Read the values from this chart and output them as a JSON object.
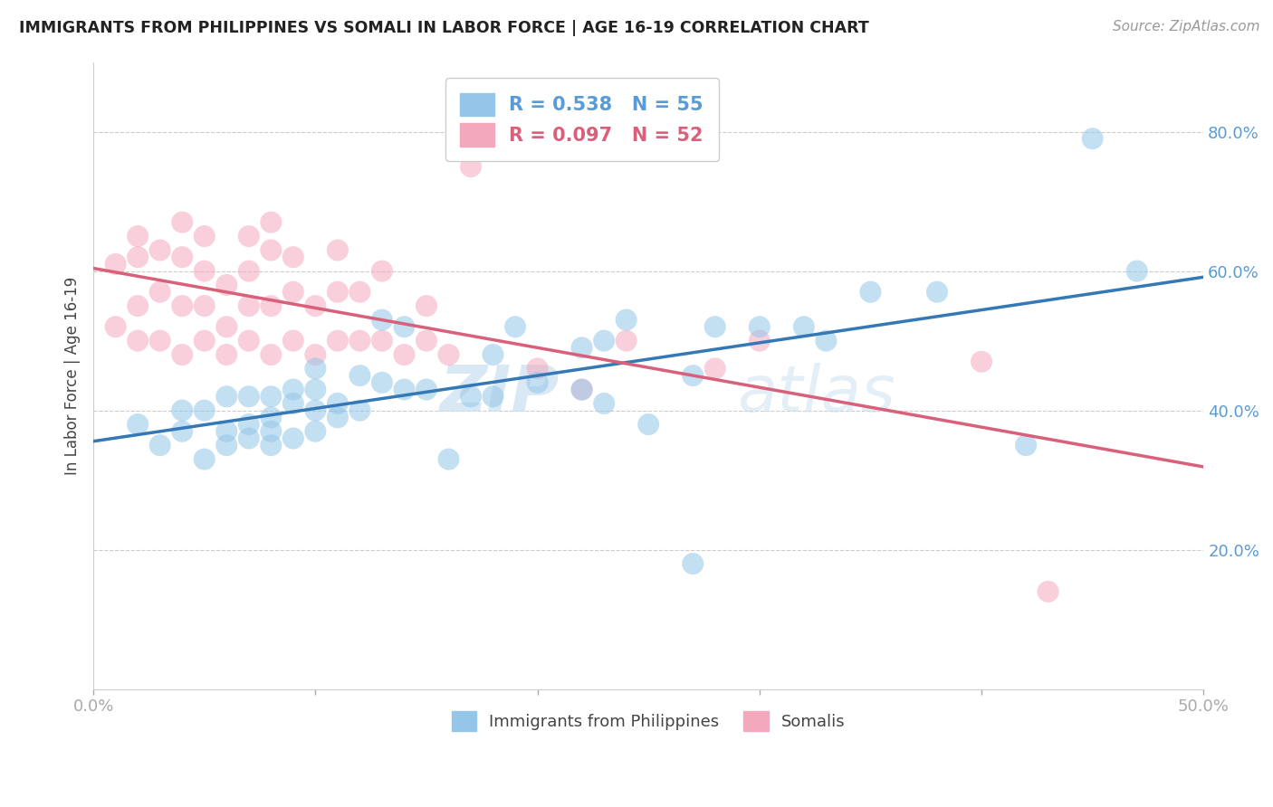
{
  "title": "IMMIGRANTS FROM PHILIPPINES VS SOMALI IN LABOR FORCE | AGE 16-19 CORRELATION CHART",
  "source": "Source: ZipAtlas.com",
  "ylabel": "In Labor Force | Age 16-19",
  "xlim": [
    0.0,
    0.5
  ],
  "ylim": [
    0.0,
    0.9
  ],
  "xticks": [
    0.0,
    0.1,
    0.2,
    0.3,
    0.4,
    0.5
  ],
  "xticklabels": [
    "0.0%",
    "",
    "",
    "",
    "",
    "50.0%"
  ],
  "yticks": [
    0.2,
    0.4,
    0.6,
    0.8
  ],
  "yticklabels": [
    "20.0%",
    "40.0%",
    "60.0%",
    "80.0%"
  ],
  "philippines_R": 0.538,
  "philippines_N": 55,
  "somali_R": 0.097,
  "somali_N": 52,
  "blue_color": "#93c6e8",
  "pink_color": "#f4a8be",
  "blue_line_color": "#3478b5",
  "pink_line_color": "#d9607a",
  "tick_color": "#5b9bd5",
  "legend_label_blue": "Immigrants from Philippines",
  "legend_label_pink": "Somalis",
  "philippines_x": [
    0.02,
    0.03,
    0.04,
    0.04,
    0.05,
    0.05,
    0.06,
    0.06,
    0.06,
    0.07,
    0.07,
    0.07,
    0.08,
    0.08,
    0.08,
    0.08,
    0.09,
    0.09,
    0.09,
    0.1,
    0.1,
    0.1,
    0.1,
    0.11,
    0.11,
    0.12,
    0.12,
    0.13,
    0.13,
    0.14,
    0.14,
    0.15,
    0.16,
    0.17,
    0.18,
    0.18,
    0.19,
    0.2,
    0.22,
    0.22,
    0.23,
    0.23,
    0.24,
    0.25,
    0.27,
    0.27,
    0.28,
    0.3,
    0.32,
    0.33,
    0.35,
    0.38,
    0.42,
    0.45,
    0.47
  ],
  "philippines_y": [
    0.38,
    0.35,
    0.37,
    0.4,
    0.33,
    0.4,
    0.35,
    0.37,
    0.42,
    0.36,
    0.38,
    0.42,
    0.35,
    0.37,
    0.39,
    0.42,
    0.36,
    0.41,
    0.43,
    0.37,
    0.4,
    0.43,
    0.46,
    0.39,
    0.41,
    0.4,
    0.45,
    0.44,
    0.53,
    0.43,
    0.52,
    0.43,
    0.33,
    0.42,
    0.42,
    0.48,
    0.52,
    0.44,
    0.43,
    0.49,
    0.41,
    0.5,
    0.53,
    0.38,
    0.18,
    0.45,
    0.52,
    0.52,
    0.52,
    0.5,
    0.57,
    0.57,
    0.35,
    0.79,
    0.6
  ],
  "somali_x": [
    0.01,
    0.01,
    0.02,
    0.02,
    0.02,
    0.02,
    0.03,
    0.03,
    0.03,
    0.04,
    0.04,
    0.04,
    0.04,
    0.05,
    0.05,
    0.05,
    0.05,
    0.06,
    0.06,
    0.06,
    0.07,
    0.07,
    0.07,
    0.07,
    0.08,
    0.08,
    0.08,
    0.08,
    0.09,
    0.09,
    0.09,
    0.1,
    0.1,
    0.11,
    0.11,
    0.11,
    0.12,
    0.12,
    0.13,
    0.13,
    0.14,
    0.15,
    0.15,
    0.16,
    0.17,
    0.2,
    0.22,
    0.24,
    0.28,
    0.3,
    0.4,
    0.43
  ],
  "somali_y": [
    0.52,
    0.61,
    0.5,
    0.55,
    0.62,
    0.65,
    0.5,
    0.57,
    0.63,
    0.48,
    0.55,
    0.62,
    0.67,
    0.5,
    0.55,
    0.6,
    0.65,
    0.48,
    0.52,
    0.58,
    0.5,
    0.55,
    0.6,
    0.65,
    0.48,
    0.55,
    0.63,
    0.67,
    0.5,
    0.57,
    0.62,
    0.48,
    0.55,
    0.5,
    0.57,
    0.63,
    0.5,
    0.57,
    0.5,
    0.6,
    0.48,
    0.5,
    0.55,
    0.48,
    0.75,
    0.46,
    0.43,
    0.5,
    0.46,
    0.5,
    0.47,
    0.14
  ],
  "watermark_zip": "ZIP",
  "watermark_atlas": "atlas",
  "figsize": [
    14.06,
    8.92
  ],
  "dpi": 100
}
